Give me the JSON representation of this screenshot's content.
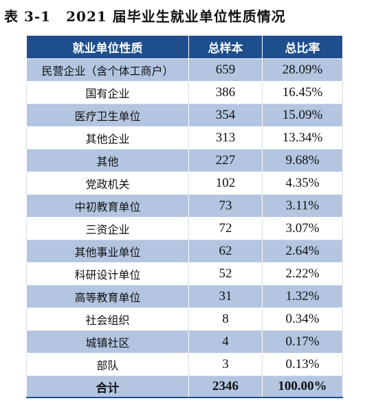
{
  "caption": {
    "number": "表 3-1",
    "title": "2021 届毕业生就业单位性质情况"
  },
  "table": {
    "headers": [
      "就业单位性质",
      "总样本",
      "总比率"
    ],
    "rows": [
      {
        "type": "民营企业（含个体工商户）",
        "count": "659",
        "ratio": "28.09%"
      },
      {
        "type": "国有企业",
        "count": "386",
        "ratio": "16.45%"
      },
      {
        "type": "医疗卫生单位",
        "count": "354",
        "ratio": "15.09%"
      },
      {
        "type": "其他企业",
        "count": "313",
        "ratio": "13.34%"
      },
      {
        "type": "其他",
        "count": "227",
        "ratio": "9.68%"
      },
      {
        "type": "党政机关",
        "count": "102",
        "ratio": "4.35%"
      },
      {
        "type": "中初教育单位",
        "count": "73",
        "ratio": "3.11%"
      },
      {
        "type": "三资企业",
        "count": "72",
        "ratio": "3.07%"
      },
      {
        "type": "其他事业单位",
        "count": "62",
        "ratio": "2.64%"
      },
      {
        "type": "科研设计单位",
        "count": "52",
        "ratio": "2.22%"
      },
      {
        "type": "高等教育单位",
        "count": "31",
        "ratio": "1.32%"
      },
      {
        "type": "社会组织",
        "count": "8",
        "ratio": "0.34%"
      },
      {
        "type": "城镇社区",
        "count": "4",
        "ratio": "0.17%"
      },
      {
        "type": "部队",
        "count": "3",
        "ratio": "0.13%"
      }
    ],
    "total": {
      "label": "合计",
      "count": "2346",
      "ratio": "100.00%"
    }
  },
  "colors": {
    "header_bg": "#1f4e8c",
    "stripe_bg": "#b3c5e0",
    "plain_bg": "#ffffff"
  }
}
